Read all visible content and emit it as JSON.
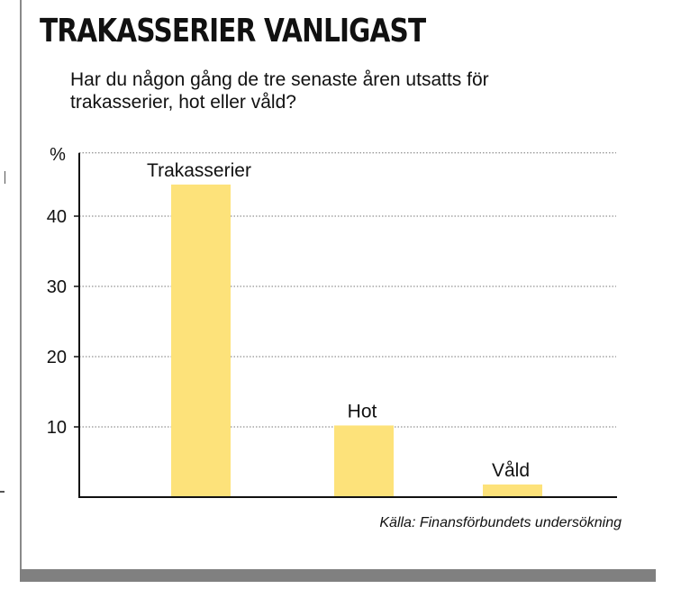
{
  "title": "TRAKASSERIER VANLIGAST",
  "subtitle": "Har du någon gång de tre senaste åren utsatts för trakasserier, hot eller våld?",
  "source": "Källa: Finansförbundets undersökning",
  "colors": {
    "bar": "#fde27a",
    "axis": "#111111",
    "grid": "#777777",
    "frame": "#808080"
  },
  "chart_data": {
    "type": "bar",
    "categories": [
      "Trakasserier",
      "Hot",
      "Våld"
    ],
    "values": [
      44.5,
      10.2,
      1.8
    ],
    "ylabel": "%",
    "ylim": [
      0,
      49
    ],
    "yticks": [
      10,
      20,
      30,
      40
    ],
    "grid": true,
    "category_labels_above_bars": true
  }
}
